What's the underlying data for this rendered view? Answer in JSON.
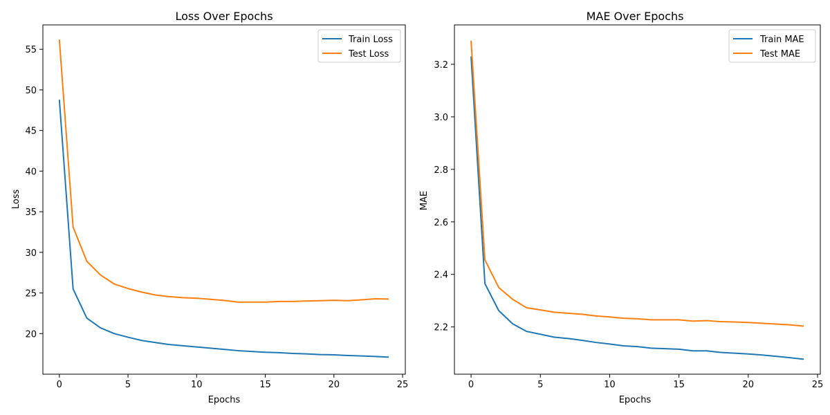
{
  "chart_data": [
    {
      "type": "line",
      "title": "Loss Over Epochs",
      "xlabel": "Epochs",
      "ylabel": "Loss",
      "xlim": [
        -1.2,
        25.2
      ],
      "ylim": [
        15.0,
        58.0
      ],
      "xticks": [
        0,
        5,
        10,
        15,
        20,
        25
      ],
      "yticks": [
        20,
        25,
        30,
        35,
        40,
        45,
        50,
        55
      ],
      "grid": false,
      "legend_position": "top-right",
      "x": [
        0,
        1,
        2,
        3,
        4,
        5,
        6,
        7,
        8,
        9,
        10,
        11,
        12,
        13,
        14,
        15,
        16,
        17,
        18,
        19,
        20,
        21,
        22,
        23,
        24
      ],
      "series": [
        {
          "name": "Train Loss",
          "color": "#1f77b4",
          "values": [
            48.8,
            25.5,
            21.9,
            20.7,
            20.0,
            19.55,
            19.15,
            18.9,
            18.65,
            18.5,
            18.35,
            18.2,
            18.05,
            17.9,
            17.8,
            17.7,
            17.65,
            17.55,
            17.5,
            17.42,
            17.38,
            17.3,
            17.25,
            17.18,
            17.1
          ]
        },
        {
          "name": "Test Loss",
          "color": "#ff7f0e",
          "values": [
            56.2,
            33.1,
            28.9,
            27.2,
            26.1,
            25.55,
            25.1,
            24.75,
            24.55,
            24.42,
            24.35,
            24.22,
            24.08,
            23.88,
            23.88,
            23.88,
            23.95,
            23.95,
            24.02,
            24.05,
            24.1,
            24.05,
            24.15,
            24.28,
            24.25
          ]
        }
      ]
    },
    {
      "type": "line",
      "title": "MAE Over Epochs",
      "xlabel": "Epochs",
      "ylabel": "MAE",
      "xlim": [
        -1.2,
        25.2
      ],
      "ylim": [
        2.02,
        3.35
      ],
      "xticks": [
        0,
        5,
        10,
        15,
        20,
        25
      ],
      "yticks": [
        2.2,
        2.4,
        2.6,
        2.8,
        3.0,
        3.2
      ],
      "grid": false,
      "legend_position": "top-right",
      "x": [
        0,
        1,
        2,
        3,
        4,
        5,
        6,
        7,
        8,
        9,
        10,
        11,
        12,
        13,
        14,
        15,
        16,
        17,
        18,
        19,
        20,
        21,
        22,
        23,
        24
      ],
      "series": [
        {
          "name": "Train MAE",
          "color": "#1f77b4",
          "values": [
            3.23,
            2.365,
            2.262,
            2.212,
            2.183,
            2.172,
            2.161,
            2.156,
            2.149,
            2.141,
            2.135,
            2.128,
            2.125,
            2.119,
            2.117,
            2.115,
            2.109,
            2.109,
            2.103,
            2.1,
            2.097,
            2.093,
            2.088,
            2.083,
            2.077
          ]
        },
        {
          "name": "Test MAE",
          "color": "#ff7f0e",
          "values": [
            3.29,
            2.455,
            2.35,
            2.305,
            2.273,
            2.265,
            2.256,
            2.252,
            2.248,
            2.242,
            2.238,
            2.233,
            2.231,
            2.227,
            2.227,
            2.227,
            2.222,
            2.224,
            2.22,
            2.219,
            2.217,
            2.214,
            2.211,
            2.208,
            2.203
          ]
        }
      ]
    }
  ]
}
